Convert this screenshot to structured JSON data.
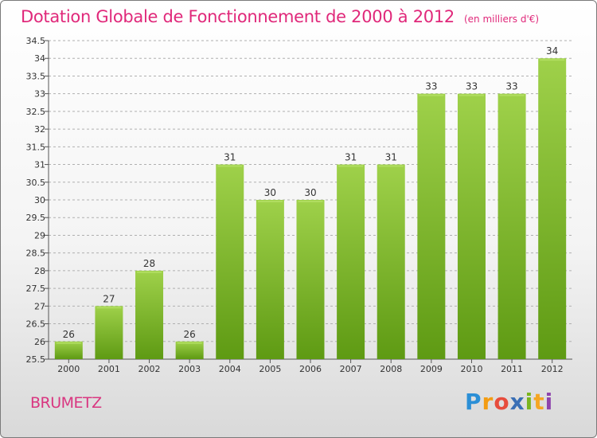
{
  "header": {
    "title": "Dotation Globale de Fonctionnement de 2000 à 2012",
    "unit": "(en milliers d'€)"
  },
  "footer": {
    "commune": "BRUMETZ",
    "logo": "Proxiti"
  },
  "colors": {
    "bar_top": "#9fd14a",
    "bar_bottom": "#5e9a13",
    "title": "#e0287a",
    "grid": "#b0b0b0"
  },
  "chart_data": {
    "type": "bar",
    "title": "Dotation Globale de Fonctionnement de 2000 à 2012",
    "subtitle": "(en milliers d'€)",
    "categories": [
      "2000",
      "2001",
      "2002",
      "2003",
      "2004",
      "2005",
      "2006",
      "2007",
      "2008",
      "2009",
      "2010",
      "2011",
      "2012"
    ],
    "values": [
      26,
      27,
      28,
      26,
      31,
      30,
      30,
      31,
      31,
      33,
      33,
      33,
      34
    ],
    "data_labels": [
      "26",
      "27",
      "28",
      "26",
      "31",
      "30",
      "30",
      "31",
      "31",
      "33",
      "33",
      "33",
      "34"
    ],
    "ylim": [
      25.5,
      34.5
    ],
    "yticks": [
      "25.5",
      "26",
      "26.5",
      "27",
      "27.5",
      "28",
      "28.5",
      "29",
      "29.5",
      "30",
      "30.5",
      "31",
      "31.5",
      "32",
      "32.5",
      "33",
      "33.5",
      "34",
      "34.5"
    ],
    "grid": true,
    "legend": "none"
  }
}
